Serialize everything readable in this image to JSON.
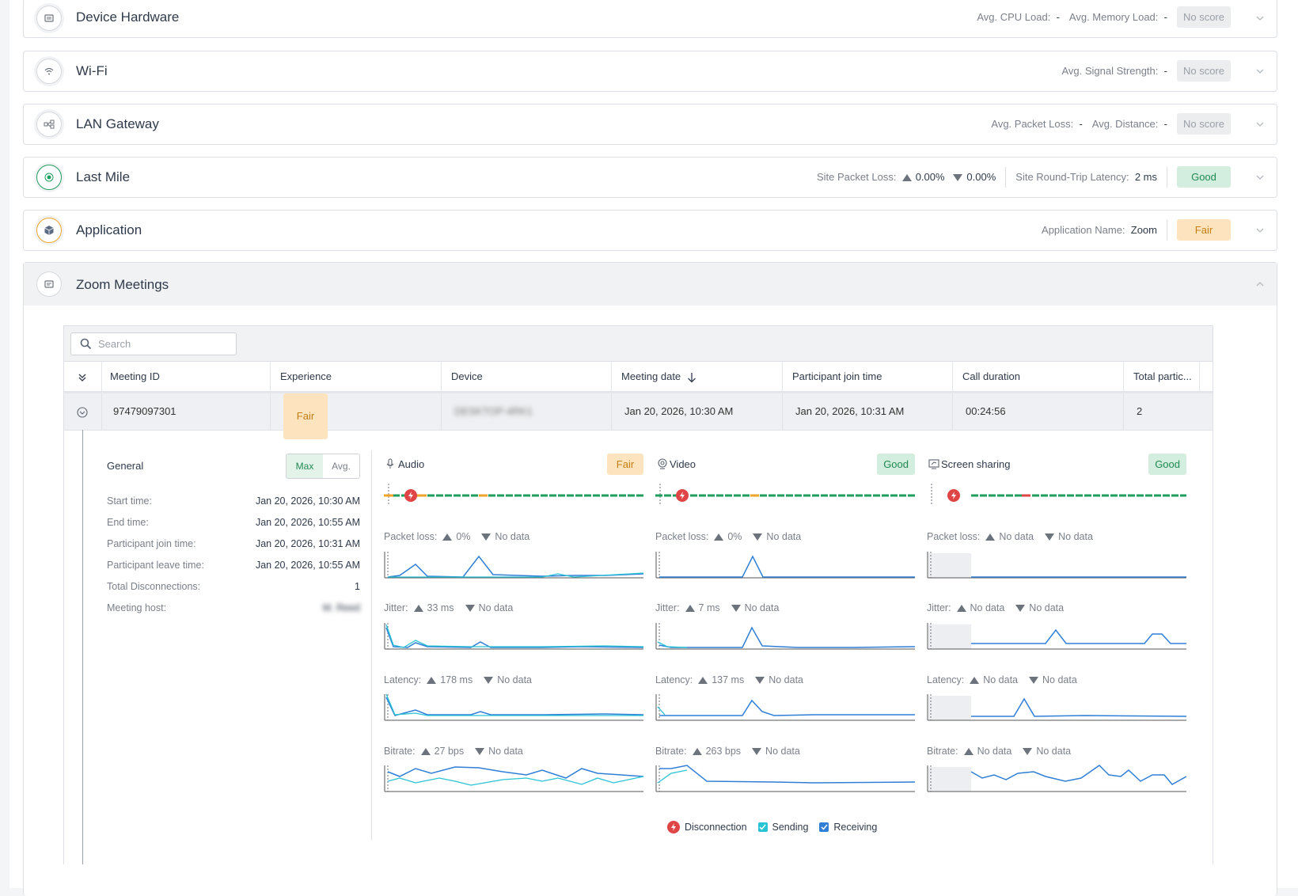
{
  "sections": [
    {
      "title": "Device Hardware",
      "metrics": [
        {
          "label": "Avg. CPU Load:",
          "value": "-"
        },
        {
          "label": "Avg. Memory Load:",
          "value": "-"
        }
      ],
      "badge": "No score"
    },
    {
      "title": "Wi-Fi",
      "metrics": [
        {
          "label": "Avg. Signal Strength:",
          "value": "-"
        }
      ],
      "badge": "No score"
    },
    {
      "title": "LAN Gateway",
      "metrics": [
        {
          "label": "Avg. Packet Loss:",
          "value": "-"
        },
        {
          "label": "Avg. Distance:",
          "value": "-"
        }
      ],
      "badge": "No score"
    },
    {
      "title": "Last Mile",
      "packet_loss_label": "Site Packet Loss:",
      "packet_loss_up": "0.00%",
      "packet_loss_down": "0.00%",
      "latency_label": "Site Round-Trip Latency:",
      "latency_value": "2 ms",
      "badge": "Good"
    },
    {
      "title": "Application",
      "metrics": [
        {
          "label": "Application Name:",
          "value": "Zoom"
        }
      ],
      "badge": "Fair"
    }
  ],
  "zoom": {
    "title": "Zoom Meetings",
    "search_placeholder": "Search",
    "columns": [
      "Meeting ID",
      "Experience",
      "Device",
      "Meeting date",
      "Participant join time",
      "Call duration",
      "Total partic..."
    ],
    "row": {
      "meeting_id": "97479097301",
      "experience": "Fair",
      "device": "DESKTOP-4RK1",
      "meeting_date": "Jan 20, 2026, 10:30 AM",
      "join_time": "Jan 20, 2026, 10:31 AM",
      "duration": "00:24:56",
      "participants": "2"
    },
    "general": {
      "title": "General",
      "toggle": [
        "Max",
        "Avg."
      ],
      "fields": [
        {
          "label": "Start time:",
          "value": "Jan 20, 2026, 10:30 AM"
        },
        {
          "label": "End time:",
          "value": "Jan 20, 2026, 10:55 AM"
        },
        {
          "label": "Participant join time:",
          "value": "Jan 20, 2026, 10:31 AM"
        },
        {
          "label": "Participant leave time:",
          "value": "Jan 20, 2026, 10:55 AM"
        },
        {
          "label": "Total Disconnections:",
          "value": "1"
        },
        {
          "label": "Meeting host:",
          "value": "M. Reed"
        }
      ]
    },
    "media": [
      {
        "title": "Audio",
        "badge": "Fair",
        "icon": "microphone-icon",
        "packet_loss": {
          "label": "Packet loss:",
          "up": "0%",
          "down": "No data"
        },
        "jitter": {
          "label": "Jitter:",
          "up": "33 ms",
          "down": "No data"
        },
        "latency": {
          "label": "Latency:",
          "up": "178 ms",
          "down": "No data"
        },
        "bitrate": {
          "label": "Bitrate:",
          "up": "27 bps",
          "down": "No data"
        }
      },
      {
        "title": "Video",
        "badge": "Good",
        "icon": "webcam-icon",
        "packet_loss": {
          "label": "Packet loss:",
          "up": "0%",
          "down": "No data"
        },
        "jitter": {
          "label": "Jitter:",
          "up": "7 ms",
          "down": "No data"
        },
        "latency": {
          "label": "Latency:",
          "up": "137 ms",
          "down": "No data"
        },
        "bitrate": {
          "label": "Bitrate:",
          "up": "263 bps",
          "down": "No data"
        }
      },
      {
        "title": "Screen sharing",
        "badge": "Good",
        "icon": "screen-share-icon",
        "packet_loss": {
          "label": "Packet loss:",
          "up": "No data",
          "down": "No data"
        },
        "jitter": {
          "label": "Jitter:",
          "up": "No data",
          "down": "No data"
        },
        "latency": {
          "label": "Latency:",
          "up": "No data",
          "down": "No data"
        },
        "bitrate": {
          "label": "Bitrate:",
          "up": "No data",
          "down": "No data"
        }
      }
    ],
    "legend": {
      "disconnection": "Disconnection",
      "sending": "Sending",
      "receiving": "Receiving"
    }
  },
  "colors": {
    "good": "#1f9d5c",
    "fair": "#f0a52a",
    "bad": "#e04545",
    "sending": "#28c3d4",
    "receiving": "#2f7fd6"
  }
}
